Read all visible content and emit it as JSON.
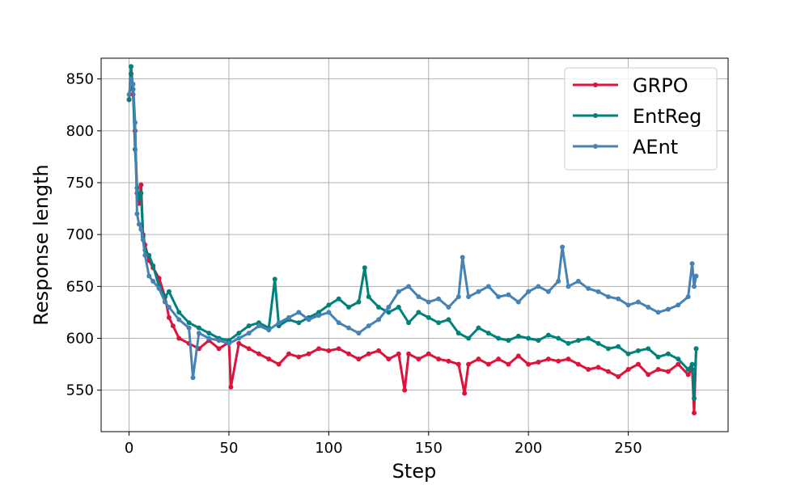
{
  "chart_data": {
    "type": "line",
    "title": "",
    "xlabel": "Step",
    "ylabel": "Response length",
    "xlim": [
      -14,
      300
    ],
    "ylim": [
      510,
      870
    ],
    "xticks": [
      0,
      50,
      100,
      150,
      200,
      250
    ],
    "yticks": [
      550,
      600,
      650,
      700,
      750,
      800,
      850
    ],
    "grid": true,
    "legend_position": "top-right",
    "series": [
      {
        "name": "GRPO",
        "color": "#dc143c",
        "x": [
          0,
          1,
          2,
          3,
          4,
          5,
          6,
          7,
          8,
          10,
          12,
          15,
          18,
          20,
          22,
          25,
          30,
          35,
          40,
          45,
          50,
          51,
          55,
          60,
          65,
          70,
          75,
          80,
          85,
          90,
          95,
          100,
          105,
          110,
          115,
          120,
          125,
          130,
          135,
          138,
          140,
          145,
          150,
          155,
          160,
          165,
          168,
          170,
          175,
          180,
          185,
          190,
          195,
          200,
          205,
          210,
          215,
          220,
          225,
          230,
          235,
          240,
          245,
          250,
          255,
          260,
          265,
          270,
          275,
          280,
          282,
          283,
          284
        ],
        "values": [
          830,
          855,
          835,
          800,
          740,
          730,
          748,
          700,
          690,
          675,
          668,
          658,
          640,
          620,
          612,
          600,
          595,
          590,
          598,
          590,
          596,
          553,
          595,
          590,
          585,
          580,
          575,
          585,
          582,
          585,
          590,
          588,
          590,
          585,
          580,
          585,
          588,
          580,
          585,
          550,
          585,
          580,
          585,
          580,
          578,
          575,
          547,
          575,
          580,
          575,
          580,
          575,
          583,
          575,
          577,
          580,
          578,
          580,
          575,
          570,
          572,
          568,
          563,
          570,
          575,
          565,
          570,
          568,
          575,
          565,
          570,
          528,
          590
        ]
      },
      {
        "name": "EntReg",
        "color": "#00827c",
        "x": [
          0,
          1,
          2,
          3,
          4,
          5,
          6,
          7,
          8,
          10,
          12,
          15,
          18,
          20,
          25,
          30,
          35,
          40,
          45,
          50,
          55,
          60,
          65,
          70,
          73,
          75,
          80,
          85,
          90,
          95,
          100,
          105,
          110,
          115,
          118,
          120,
          125,
          130,
          135,
          140,
          145,
          150,
          155,
          160,
          165,
          170,
          175,
          180,
          185,
          190,
          195,
          200,
          205,
          210,
          215,
          220,
          225,
          230,
          235,
          240,
          245,
          250,
          255,
          260,
          265,
          270,
          275,
          280,
          282,
          283,
          284
        ],
        "values": [
          830,
          862,
          840,
          782,
          745,
          735,
          740,
          698,
          685,
          680,
          670,
          650,
          640,
          645,
          625,
          615,
          610,
          605,
          600,
          598,
          605,
          612,
          615,
          610,
          657,
          612,
          618,
          615,
          620,
          625,
          632,
          638,
          630,
          635,
          668,
          640,
          630,
          625,
          630,
          615,
          625,
          620,
          615,
          618,
          605,
          600,
          610,
          605,
          600,
          598,
          602,
          600,
          598,
          603,
          600,
          595,
          598,
          600,
          595,
          590,
          592,
          585,
          588,
          590,
          582,
          585,
          580,
          570,
          575,
          542,
          590
        ]
      },
      {
        "name": "AEnt",
        "color": "#4682b4",
        "x": [
          0,
          1,
          2,
          3,
          4,
          5,
          6,
          7,
          8,
          10,
          12,
          15,
          18,
          20,
          25,
          30,
          32,
          35,
          40,
          45,
          50,
          55,
          60,
          65,
          70,
          75,
          80,
          85,
          90,
          95,
          100,
          105,
          110,
          115,
          120,
          125,
          130,
          135,
          140,
          145,
          150,
          155,
          160,
          165,
          167,
          170,
          175,
          180,
          185,
          190,
          195,
          200,
          205,
          210,
          215,
          217,
          220,
          225,
          230,
          235,
          240,
          245,
          250,
          255,
          260,
          265,
          270,
          275,
          280,
          282,
          283,
          284
        ],
        "values": [
          835,
          850,
          845,
          808,
          720,
          710,
          705,
          695,
          680,
          660,
          655,
          648,
          635,
          630,
          618,
          610,
          562,
          605,
          600,
          598,
          595,
          600,
          605,
          612,
          608,
          615,
          620,
          625,
          618,
          622,
          625,
          615,
          610,
          605,
          612,
          618,
          630,
          645,
          650,
          640,
          635,
          638,
          630,
          640,
          678,
          640,
          645,
          650,
          640,
          642,
          635,
          645,
          650,
          645,
          655,
          688,
          650,
          655,
          648,
          645,
          640,
          638,
          632,
          635,
          630,
          625,
          628,
          632,
          640,
          672,
          650,
          660
        ]
      }
    ]
  }
}
